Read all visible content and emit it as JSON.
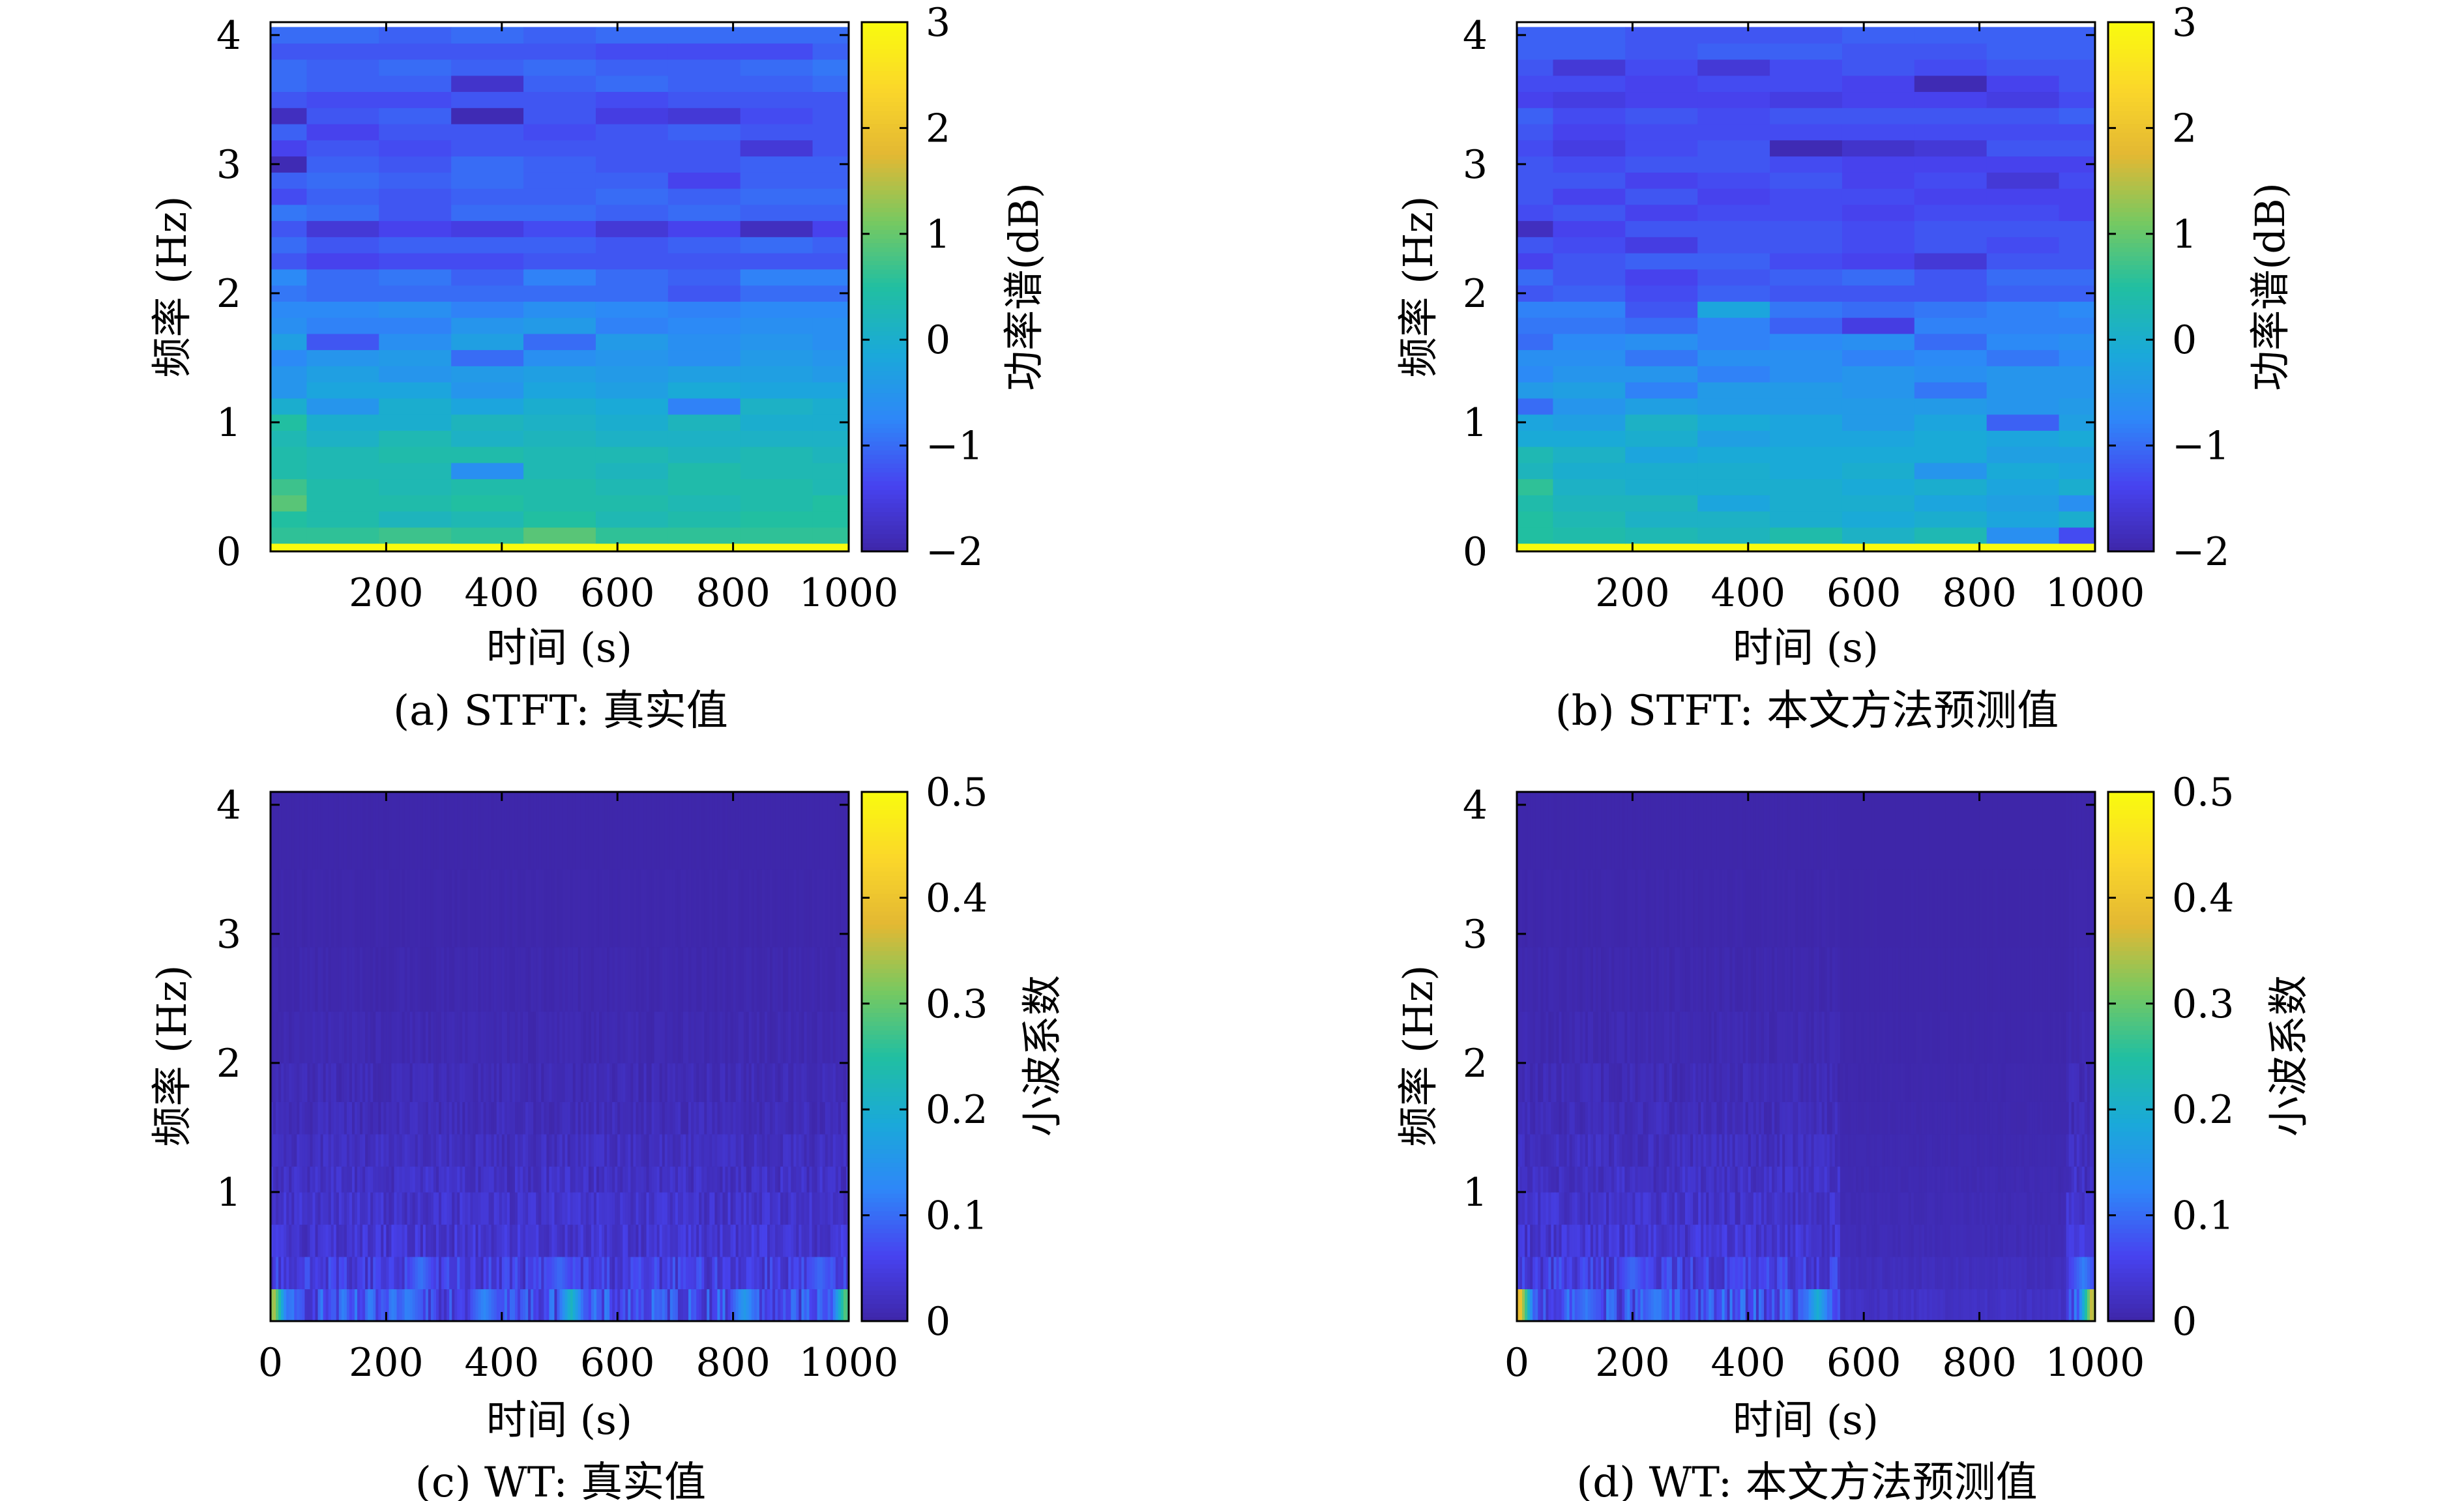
{
  "figure": {
    "panels": [
      {
        "id": "a",
        "caption": "(a) STFT: 真实值",
        "xlabel": "时间 (s)",
        "ylabel": "频率 (Hz)",
        "colorbar_label": "功率谱(dB)"
      },
      {
        "id": "b",
        "caption": "(b) STFT: 本文方法预测值",
        "xlabel": "时间 (s)",
        "ylabel": "频率 (Hz)",
        "colorbar_label": "功率谱(dB)"
      },
      {
        "id": "c",
        "caption": "(c) WT: 真实值",
        "xlabel": "时间 (s)",
        "ylabel": "频率 (Hz)",
        "colorbar_label": "小波系数"
      },
      {
        "id": "d",
        "caption": "(d) WT: 本文方法预测值",
        "xlabel": "时间 (s)",
        "ylabel": "频率 (Hz)",
        "colorbar_label": "小波系数"
      }
    ]
  },
  "colormap": [
    "#3e26a8",
    "#4743f0",
    "#2e87f8",
    "#1aa9d9",
    "#21bfa1",
    "#78c960",
    "#e3b833",
    "#fbd72a",
    "#f9fb0e"
  ],
  "chart_data": [
    {
      "type": "heatmap",
      "panel": "a",
      "xlabel": "时间 (s)",
      "ylabel": "频率 (Hz)",
      "xlim": [
        0,
        1000
      ],
      "ylim": [
        0,
        4.1
      ],
      "x_ticks": [
        200,
        400,
        600,
        800,
        1000
      ],
      "x_tick_labels": [
        "200",
        "400",
        "600",
        "800",
        "1000"
      ],
      "y_ticks": [
        0,
        1,
        2,
        3,
        4
      ],
      "y_tick_labels": [
        "0",
        "1",
        "2",
        "3",
        "4"
      ],
      "colorbar": {
        "label": "功率谱(dB)",
        "range": [
          -2,
          3
        ],
        "ticks": [
          -2,
          -1,
          0,
          1,
          2,
          3
        ],
        "tick_labels": [
          "−2",
          "−1",
          "0",
          "1",
          "2",
          "3"
        ]
      },
      "time_centers": [
        0,
        125,
        250,
        375,
        500,
        625,
        750,
        875,
        1000
      ],
      "freq_centers": [
        0,
        0.125,
        0.25,
        0.375,
        0.5,
        0.625,
        0.75,
        0.875,
        1.0,
        1.125,
        1.25,
        1.375,
        1.5,
        1.625,
        1.75,
        1.875,
        2.0,
        2.125,
        2.25,
        2.375,
        2.5,
        2.625,
        2.75,
        2.875,
        3.0,
        3.125,
        3.25,
        3.375,
        3.5,
        3.625,
        3.75,
        3.875,
        4.0
      ],
      "values": [
        [
          3.0,
          3.0,
          3.0,
          3.0,
          3.0,
          3.0,
          3.0,
          3.0,
          3.0
        ],
        [
          0.6,
          0.6,
          0.7,
          0.6,
          0.9,
          0.6,
          0.6,
          0.6,
          0.6
        ],
        [
          0.5,
          0.4,
          0.2,
          0.3,
          0.5,
          0.3,
          0.4,
          0.5,
          0.5
        ],
        [
          0.9,
          0.4,
          0.4,
          0.5,
          0.4,
          0.4,
          0.3,
          0.4,
          0.5
        ],
        [
          0.7,
          0.4,
          0.3,
          0.4,
          0.4,
          0.3,
          0.4,
          0.4,
          0.3
        ],
        [
          0.4,
          0.3,
          0.3,
          -0.6,
          0.3,
          0.2,
          0.4,
          0.3,
          0.3
        ],
        [
          0.4,
          0.3,
          0.4,
          0.4,
          0.3,
          0.3,
          0.2,
          0.3,
          0.2
        ],
        [
          0.3,
          0.1,
          0.3,
          0.1,
          0.2,
          0.1,
          0.1,
          0.1,
          0.1
        ],
        [
          0.5,
          0.0,
          0.0,
          0.2,
          0.1,
          0.0,
          0.2,
          0.0,
          0.0
        ],
        [
          0.0,
          -0.5,
          0.0,
          -0.2,
          0.0,
          -0.1,
          -0.8,
          0.1,
          0.0
        ],
        [
          -0.5,
          -0.2,
          -0.2,
          -0.5,
          -0.2,
          -0.3,
          -0.1,
          -0.2,
          -0.2
        ],
        [
          -0.5,
          -0.3,
          -0.5,
          -0.4,
          -0.3,
          -0.4,
          -0.3,
          -0.3,
          -0.4
        ],
        [
          -0.7,
          -0.5,
          -0.4,
          -1.0,
          -0.6,
          -0.5,
          -0.6,
          -0.4,
          -0.5
        ],
        [
          -0.3,
          -1.2,
          -0.6,
          -0.3,
          -1.0,
          -0.4,
          -0.6,
          -0.5,
          -0.6
        ],
        [
          -0.6,
          -0.8,
          -0.8,
          -0.5,
          -0.4,
          -0.8,
          -0.7,
          -0.6,
          -0.6
        ],
        [
          -0.7,
          -0.7,
          -0.6,
          -0.8,
          -0.6,
          -0.7,
          -0.8,
          -0.7,
          -0.7
        ],
        [
          -0.9,
          -1.0,
          -1.0,
          -1.0,
          -1.0,
          -1.0,
          -1.2,
          -1.0,
          -1.0
        ],
        [
          -0.7,
          -1.0,
          -0.9,
          -1.1,
          -0.8,
          -1.0,
          -1.1,
          -0.8,
          -0.8
        ],
        [
          -1.2,
          -1.4,
          -1.3,
          -1.3,
          -1.2,
          -1.2,
          -1.2,
          -1.2,
          -1.2
        ],
        [
          -1.0,
          -1.2,
          -1.1,
          -1.1,
          -1.1,
          -1.2,
          -1.1,
          -1.0,
          -1.1
        ],
        [
          -1.2,
          -1.6,
          -1.4,
          -1.5,
          -1.3,
          -1.6,
          -1.4,
          -1.8,
          -1.4
        ],
        [
          -0.9,
          -1.0,
          -1.2,
          -1.0,
          -1.0,
          -1.1,
          -1.0,
          -1.1,
          -1.1
        ],
        [
          -1.3,
          -1.1,
          -1.2,
          -1.1,
          -1.1,
          -1.0,
          -1.1,
          -1.0,
          -1.0
        ],
        [
          -1.1,
          -1.0,
          -1.1,
          -1.0,
          -1.1,
          -1.1,
          -1.4,
          -1.1,
          -1.1
        ],
        [
          -1.9,
          -1.1,
          -1.2,
          -1.0,
          -1.1,
          -1.2,
          -1.2,
          -1.1,
          -1.1
        ],
        [
          -1.4,
          -1.2,
          -1.3,
          -1.2,
          -1.2,
          -1.2,
          -1.2,
          -1.6,
          -1.2
        ],
        [
          -1.1,
          -1.4,
          -1.2,
          -1.2,
          -1.3,
          -1.2,
          -1.1,
          -1.2,
          -1.2
        ],
        [
          -1.8,
          -1.2,
          -1.1,
          -1.9,
          -1.2,
          -1.5,
          -1.6,
          -1.3,
          -1.2
        ],
        [
          -1.2,
          -1.3,
          -1.3,
          -1.2,
          -1.2,
          -1.3,
          -1.2,
          -1.2,
          -1.2
        ],
        [
          -1.0,
          -1.1,
          -1.1,
          -1.7,
          -1.1,
          -1.0,
          -1.1,
          -1.1,
          -1.0
        ],
        [
          -1.0,
          -1.1,
          -1.0,
          -1.1,
          -1.0,
          -1.1,
          -1.1,
          -1.0,
          -0.9
        ],
        [
          -1.2,
          -1.2,
          -1.2,
          -1.2,
          -1.2,
          -1.3,
          -1.3,
          -1.3,
          -1.1
        ],
        [
          -1.0,
          -1.0,
          -1.1,
          -1.0,
          -1.1,
          -1.0,
          -1.0,
          -1.0,
          -1.0
        ]
      ]
    },
    {
      "type": "heatmap",
      "panel": "b",
      "xlabel": "时间 (s)",
      "ylabel": "频率 (Hz)",
      "xlim": [
        0,
        1000
      ],
      "ylim": [
        0,
        4.1
      ],
      "x_ticks": [
        200,
        400,
        600,
        800,
        1000
      ],
      "x_tick_labels": [
        "200",
        "400",
        "600",
        "800",
        "1000"
      ],
      "y_ticks": [
        0,
        1,
        2,
        3,
        4
      ],
      "y_tick_labels": [
        "0",
        "1",
        "2",
        "3",
        "4"
      ],
      "colorbar": {
        "label": "功率谱(dB)",
        "range": [
          -2,
          3
        ],
        "ticks": [
          -2,
          -1,
          0,
          1,
          2,
          3
        ],
        "tick_labels": [
          "−2",
          "−1",
          "0",
          "1",
          "2",
          "3"
        ]
      },
      "time_centers": [
        0,
        125,
        250,
        375,
        500,
        625,
        750,
        875,
        1000
      ],
      "freq_centers": [
        0,
        0.125,
        0.25,
        0.375,
        0.5,
        0.625,
        0.75,
        0.875,
        1.0,
        1.125,
        1.25,
        1.375,
        1.5,
        1.625,
        1.75,
        1.875,
        2.0,
        2.125,
        2.25,
        2.375,
        2.5,
        2.625,
        2.75,
        2.875,
        3.0,
        3.125,
        3.25,
        3.375,
        3.5,
        3.625,
        3.75,
        3.875,
        4.0
      ],
      "values": [
        [
          3.0,
          3.0,
          3.0,
          3.0,
          3.0,
          3.0,
          3.0,
          3.0,
          3.0
        ],
        [
          0.5,
          0.4,
          0.3,
          0.2,
          0.4,
          0.1,
          0.3,
          -0.6,
          -1.3
        ],
        [
          0.5,
          0.3,
          0.1,
          0.1,
          0.0,
          -0.1,
          0.0,
          -0.2,
          0.0
        ],
        [
          0.4,
          0.2,
          0.2,
          -0.2,
          0.0,
          0.0,
          -0.2,
          -0.3,
          -0.6
        ],
        [
          0.6,
          0.1,
          0.0,
          0.0,
          0.0,
          -0.1,
          0.0,
          -0.2,
          0.0
        ],
        [
          0.2,
          0.0,
          0.0,
          0.0,
          -0.1,
          0.0,
          -0.5,
          -0.1,
          -0.2
        ],
        [
          0.3,
          0.1,
          -0.2,
          -0.1,
          -0.1,
          -0.1,
          -0.1,
          -0.3,
          -0.3
        ],
        [
          -0.1,
          -0.1,
          0.0,
          -0.3,
          -0.2,
          -0.2,
          -0.1,
          -0.2,
          -0.1
        ],
        [
          -0.2,
          -0.3,
          0.1,
          -0.1,
          -0.2,
          -0.4,
          -0.2,
          -1.1,
          -0.3
        ],
        [
          -1.0,
          -0.5,
          -0.3,
          -0.4,
          -0.4,
          -0.4,
          -0.4,
          -0.5,
          -0.4
        ],
        [
          -0.4,
          -0.3,
          -0.8,
          -0.4,
          -0.4,
          -0.5,
          -0.9,
          -0.5,
          -0.5
        ],
        [
          -0.7,
          -0.5,
          -0.5,
          -0.8,
          -0.6,
          -0.5,
          -0.6,
          -0.5,
          -0.5
        ],
        [
          -0.6,
          -0.6,
          -0.9,
          -0.6,
          -0.6,
          -0.8,
          -0.7,
          -0.9,
          -0.7
        ],
        [
          -1.0,
          -0.7,
          -0.6,
          -0.8,
          -0.7,
          -0.6,
          -1.0,
          -0.7,
          -0.6
        ],
        [
          -0.9,
          -0.9,
          -1.0,
          -0.8,
          -1.1,
          -1.5,
          -0.8,
          -0.8,
          -0.8
        ],
        [
          -0.8,
          -0.8,
          -1.2,
          -0.2,
          -0.9,
          -1.0,
          -0.9,
          -0.8,
          -0.7
        ],
        [
          -1.2,
          -1.1,
          -1.3,
          -1.1,
          -1.2,
          -1.2,
          -1.2,
          -1.1,
          -1.1
        ],
        [
          -1.0,
          -1.2,
          -1.4,
          -1.2,
          -1.1,
          -1.0,
          -1.2,
          -1.0,
          -1.0
        ],
        [
          -1.4,
          -1.2,
          -1.1,
          -1.1,
          -1.3,
          -1.4,
          -1.6,
          -1.2,
          -1.2
        ],
        [
          -1.2,
          -1.3,
          -1.5,
          -1.2,
          -1.2,
          -1.3,
          -1.2,
          -1.3,
          -1.2
        ],
        [
          -1.8,
          -1.4,
          -1.2,
          -1.2,
          -1.2,
          -1.3,
          -1.2,
          -1.2,
          -1.2
        ],
        [
          -1.3,
          -1.2,
          -1.4,
          -1.3,
          -1.3,
          -1.4,
          -1.3,
          -1.3,
          -1.4
        ],
        [
          -1.2,
          -1.4,
          -1.2,
          -1.4,
          -1.3,
          -1.3,
          -1.4,
          -1.4,
          -1.4
        ],
        [
          -1.2,
          -1.2,
          -1.4,
          -1.3,
          -1.2,
          -1.4,
          -1.3,
          -1.6,
          -1.3
        ],
        [
          -1.2,
          -1.3,
          -1.2,
          -1.2,
          -1.3,
          -1.4,
          -1.4,
          -1.4,
          -1.4
        ],
        [
          -1.3,
          -1.5,
          -1.3,
          -1.2,
          -1.9,
          -1.7,
          -1.6,
          -1.2,
          -1.2
        ],
        [
          -1.2,
          -1.4,
          -1.3,
          -1.3,
          -1.3,
          -1.3,
          -1.3,
          -1.3,
          -1.3
        ],
        [
          -1.1,
          -1.3,
          -1.2,
          -1.3,
          -1.2,
          -1.2,
          -1.2,
          -1.2,
          -1.1
        ],
        [
          -1.4,
          -1.5,
          -1.4,
          -1.4,
          -1.5,
          -1.4,
          -1.4,
          -1.5,
          -1.3
        ],
        [
          -1.3,
          -1.3,
          -1.4,
          -1.3,
          -1.3,
          -1.4,
          -1.9,
          -1.4,
          -1.2
        ],
        [
          -1.2,
          -1.6,
          -1.3,
          -1.6,
          -1.3,
          -1.2,
          -1.3,
          -1.2,
          -1.2
        ],
        [
          -1.1,
          -1.1,
          -1.2,
          -1.1,
          -1.1,
          -1.2,
          -1.2,
          -1.1,
          -1.1
        ],
        [
          -1.1,
          -1.1,
          -1.2,
          -1.2,
          -1.2,
          -1.1,
          -1.1,
          -1.1,
          -1.1
        ]
      ]
    },
    {
      "type": "heatmap",
      "panel": "c",
      "xlabel": "时间 (s)",
      "ylabel": "频率 (Hz)",
      "xlim": [
        0,
        1000
      ],
      "ylim": [
        0,
        4.1
      ],
      "x_ticks": [
        0,
        200,
        400,
        600,
        800,
        1000
      ],
      "x_tick_labels": [
        "0",
        "200",
        "400",
        "600",
        "800",
        "1000"
      ],
      "y_ticks": [
        1,
        2,
        3,
        4
      ],
      "y_tick_labels": [
        "1",
        "2",
        "3",
        "4"
      ],
      "colorbar": {
        "label": "小波系数",
        "range": [
          0,
          0.5
        ],
        "ticks": [
          0,
          0.1,
          0.2,
          0.3,
          0.4,
          0.5
        ],
        "tick_labels": [
          "0",
          "0.1",
          "0.2",
          "0.3",
          "0.4",
          "0.5"
        ]
      },
      "scale_freq_edges": [
        0,
        0.25,
        0.5,
        0.75,
        1.0,
        1.2,
        1.45,
        1.7,
        2.0,
        2.4,
        2.9,
        3.5,
        4.1
      ],
      "band_mean": [
        0.07,
        0.05,
        0.035,
        0.03,
        0.025,
        0.02,
        0.015,
        0.012,
        0.008,
        0.005,
        0.003,
        0.002
      ],
      "band_variation": [
        0.05,
        0.035,
        0.025,
        0.02,
        0.018,
        0.014,
        0.012,
        0.01,
        0.006,
        0.004,
        0.002,
        0.001
      ],
      "hotspots": [
        {
          "t": 5,
          "band": 0,
          "value": 0.36
        },
        {
          "t": 520,
          "band": 0,
          "value": 0.22
        },
        {
          "t": 370,
          "band": 0,
          "value": 0.13
        },
        {
          "t": 240,
          "band": 0,
          "value": 0.12
        },
        {
          "t": 820,
          "band": 0,
          "value": 0.16
        },
        {
          "t": 995,
          "band": 0,
          "value": 0.3
        },
        {
          "t": 260,
          "band": 1,
          "value": 0.11
        },
        {
          "t": 500,
          "band": 1,
          "value": 0.1
        },
        {
          "t": 950,
          "band": 1,
          "value": 0.1
        }
      ],
      "quiet_range": null
    },
    {
      "type": "heatmap",
      "panel": "d",
      "xlabel": "时间 (s)",
      "ylabel": "频率 (Hz)",
      "xlim": [
        0,
        1000
      ],
      "ylim": [
        0,
        4.1
      ],
      "x_ticks": [
        0,
        200,
        400,
        600,
        800,
        1000
      ],
      "x_tick_labels": [
        "0",
        "200",
        "400",
        "600",
        "800",
        "1000"
      ],
      "y_ticks": [
        1,
        2,
        3,
        4
      ],
      "y_tick_labels": [
        "1",
        "2",
        "3",
        "4"
      ],
      "colorbar": {
        "label": "小波系数",
        "range": [
          0,
          0.5
        ],
        "ticks": [
          0,
          0.1,
          0.2,
          0.3,
          0.4,
          0.5
        ],
        "tick_labels": [
          "0",
          "0.1",
          "0.2",
          "0.3",
          "0.4",
          "0.5"
        ]
      },
      "scale_freq_edges": [
        0,
        0.25,
        0.5,
        0.75,
        1.0,
        1.2,
        1.45,
        1.7,
        2.0,
        2.4,
        2.9,
        3.5,
        4.1
      ],
      "band_mean": [
        0.07,
        0.05,
        0.035,
        0.03,
        0.025,
        0.02,
        0.015,
        0.012,
        0.008,
        0.005,
        0.003,
        0.002
      ],
      "band_variation": [
        0.05,
        0.035,
        0.025,
        0.02,
        0.018,
        0.014,
        0.012,
        0.01,
        0.006,
        0.004,
        0.002,
        0.001
      ],
      "hotspots": [
        {
          "t": 5,
          "band": 0,
          "value": 0.42
        },
        {
          "t": 520,
          "band": 0,
          "value": 0.2
        },
        {
          "t": 240,
          "band": 0,
          "value": 0.12
        },
        {
          "t": 120,
          "band": 0,
          "value": 0.11
        },
        {
          "t": 995,
          "band": 0,
          "value": 0.38
        },
        {
          "t": 980,
          "band": 1,
          "value": 0.12
        },
        {
          "t": 200,
          "band": 1,
          "value": 0.1
        }
      ],
      "quiet_range": [
        560,
        950
      ]
    }
  ]
}
